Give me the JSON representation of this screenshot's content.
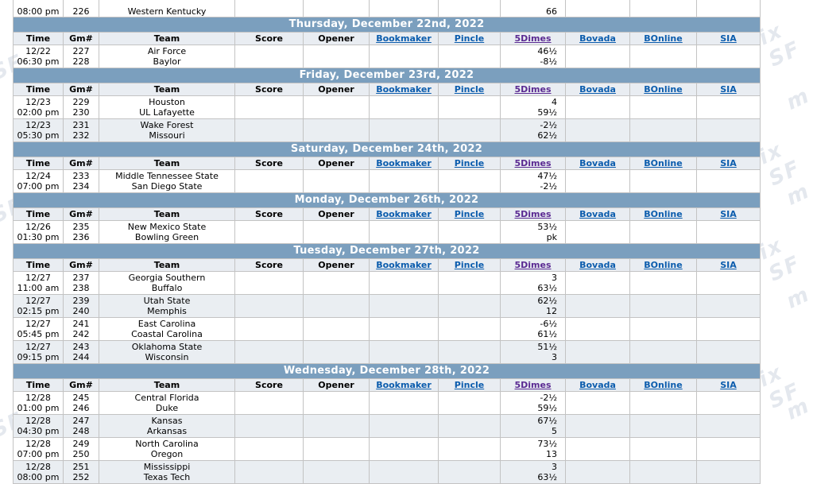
{
  "columns": {
    "time": "Time",
    "gm": "Gm#",
    "team": "Team",
    "score": "Score",
    "opener": "Opener",
    "bookmaker": "Bookmaker",
    "pincle": "Pincle",
    "fivedimes": "5Dimes",
    "bovada": "Bovada",
    "bonline": "BOnline",
    "sia": "SIA"
  },
  "partial_row": {
    "time": "08:00 pm",
    "gm": "226",
    "team": "Western Kentucky",
    "fivedimes": "66"
  },
  "days": [
    {
      "title": "Thursday, December 22nd, 2022",
      "games": [
        {
          "date": "12/22",
          "time": "06:30 pm",
          "gm1": "227",
          "gm2": "228",
          "team1": "Air Force",
          "team2": "Baylor",
          "line1": "46½",
          "line2": "-8½"
        }
      ]
    },
    {
      "title": "Friday, December 23rd, 2022",
      "games": [
        {
          "date": "12/23",
          "time": "02:00 pm",
          "gm1": "229",
          "gm2": "230",
          "team1": "Houston",
          "team2": "UL Lafayette",
          "line1": "4",
          "line2": "59½"
        },
        {
          "date": "12/23",
          "time": "05:30 pm",
          "gm1": "231",
          "gm2": "232",
          "team1": "Wake Forest",
          "team2": "Missouri",
          "line1": "-2½",
          "line2": "62½"
        }
      ]
    },
    {
      "title": "Saturday, December 24th, 2022",
      "games": [
        {
          "date": "12/24",
          "time": "07:00 pm",
          "gm1": "233",
          "gm2": "234",
          "team1": "Middle Tennessee State",
          "team2": "San Diego State",
          "line1": "47½",
          "line2": "-2½"
        }
      ]
    },
    {
      "title": "Monday, December 26th, 2022",
      "games": [
        {
          "date": "12/26",
          "time": "01:30 pm",
          "gm1": "235",
          "gm2": "236",
          "team1": "New Mexico State",
          "team2": "Bowling Green",
          "line1": "53½",
          "line2": "pk"
        }
      ]
    },
    {
      "title": "Tuesday, December 27th, 2022",
      "games": [
        {
          "date": "12/27",
          "time": "11:00 am",
          "gm1": "237",
          "gm2": "238",
          "team1": "Georgia Southern",
          "team2": "Buffalo",
          "line1": "3",
          "line2": "63½"
        },
        {
          "date": "12/27",
          "time": "02:15 pm",
          "gm1": "239",
          "gm2": "240",
          "team1": "Utah State",
          "team2": "Memphis",
          "line1": "62½",
          "line2": "12"
        },
        {
          "date": "12/27",
          "time": "05:45 pm",
          "gm1": "241",
          "gm2": "242",
          "team1": "East Carolina",
          "team2": "Coastal Carolina",
          "line1": "-6½",
          "line2": "61½"
        },
        {
          "date": "12/27",
          "time": "09:15 pm",
          "gm1": "243",
          "gm2": "244",
          "team1": "Oklahoma State",
          "team2": "Wisconsin",
          "line1": "51½",
          "line2": "3"
        }
      ]
    },
    {
      "title": "Wednesday, December 28th, 2022",
      "games": [
        {
          "date": "12/28",
          "time": "01:00 pm",
          "gm1": "245",
          "gm2": "246",
          "team1": "Central Florida",
          "team2": "Duke",
          "line1": "-2½",
          "line2": "59½"
        },
        {
          "date": "12/28",
          "time": "04:30 pm",
          "gm1": "247",
          "gm2": "248",
          "team1": "Kansas",
          "team2": "Arkansas",
          "line1": "67½",
          "line2": "5"
        },
        {
          "date": "12/28",
          "time": "07:00 pm",
          "gm1": "249",
          "gm2": "250",
          "team1": "North Carolina",
          "team2": "Oregon",
          "line1": "73½",
          "line2": "13"
        },
        {
          "date": "12/28",
          "time": "08:00 pm",
          "gm1": "251",
          "gm2": "252",
          "team1": "Mississippi",
          "team2": "Texas Tech",
          "line1": "3",
          "line2": "63½"
        }
      ]
    }
  ],
  "colors": {
    "day_header": "#7b9fbe",
    "col_header": "#e9edf2",
    "link": "#0b5cad",
    "visited_link": "#5a2a92",
    "alt_row": "#eaeef2"
  }
}
